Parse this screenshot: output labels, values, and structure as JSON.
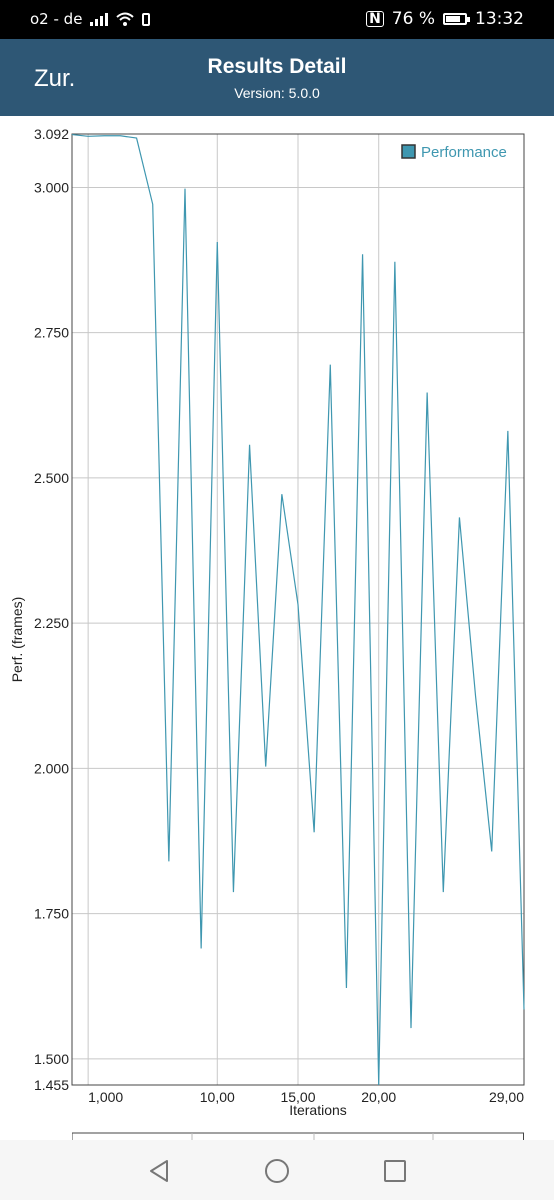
{
  "status_bar": {
    "carrier": "o2 - de",
    "battery_text": "76 %",
    "battery_level": 0.76,
    "time": "13:32",
    "icons": [
      "signal-icon",
      "wifi-icon",
      "phone-icon",
      "nfc-icon",
      "battery-icon"
    ]
  },
  "header": {
    "back_label": "Zur.",
    "title": "Results Detail",
    "subtitle": "Version: 5.0.0",
    "color": "#2e5775"
  },
  "chart_data": {
    "type": "line",
    "xlabel": "Iterations",
    "ylabel": "Perf. (frames)",
    "xlim": [
      0,
      28
    ],
    "ylim": [
      1.455,
      3.092
    ],
    "x_tick_labels": [
      {
        "x": 1,
        "label": "1,000"
      },
      {
        "x": 9,
        "label": "10,00"
      },
      {
        "x": 14,
        "label": "15,00"
      },
      {
        "x": 19,
        "label": "20,00"
      },
      {
        "x": 28,
        "label": "29,00"
      }
    ],
    "y_ticks": [
      1.455,
      1.5,
      1.75,
      2.0,
      2.25,
      2.5,
      2.75,
      3.0,
      3.092
    ],
    "y_tick_labels": [
      "1.455",
      "1.500",
      "1.750",
      "2.000",
      "2.250",
      "2.500",
      "2.750",
      "3.000",
      "3.092"
    ],
    "grid": true,
    "legend_position": "top-right",
    "series": [
      {
        "name": "Performance",
        "color": "#3f97b0",
        "x": [
          0,
          1,
          2,
          3,
          4,
          5,
          6,
          7,
          8,
          9,
          10,
          11,
          12,
          13,
          14,
          15,
          16,
          17,
          18,
          19,
          20,
          21,
          22,
          23,
          24,
          25,
          26,
          27,
          28
        ],
        "values": [
          3.091,
          3.088,
          3.089,
          3.089,
          3.085,
          2.971,
          1.84,
          2.998,
          1.69,
          2.906,
          1.787,
          2.557,
          2.003,
          2.472,
          2.282,
          1.89,
          2.695,
          1.622,
          2.885,
          1.455,
          2.872,
          1.553,
          2.647,
          1.787,
          2.432,
          2.124,
          1.857,
          2.581,
          1.585
        ]
      }
    ]
  },
  "nav": {
    "back": "back-icon",
    "home": "home-icon",
    "recents": "recents-icon"
  }
}
